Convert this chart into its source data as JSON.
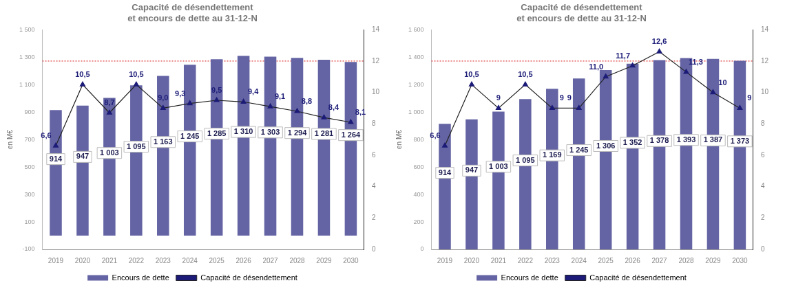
{
  "chart_data": [
    {
      "type": "bar",
      "title": "Capacité de désendettement\net encours de dette au 31-12-N",
      "ylabel": "en M€",
      "categories": [
        "2019",
        "2020",
        "2021",
        "2022",
        "2023",
        "2024",
        "2025",
        "2026",
        "2027",
        "2028",
        "2029",
        "2030"
      ],
      "series": [
        {
          "name": "Encours de dette",
          "color": "#6464a4",
          "values": [
            914,
            947,
            1003,
            1095,
            1163,
            1245,
            1285,
            1310,
            1303,
            1294,
            1281,
            1264
          ],
          "value_labels": [
            "914",
            "947",
            "1 003",
            "1 095",
            "1 163",
            "1 245",
            "1 285",
            "1 310",
            "1 303",
            "1 294",
            "1 281",
            "1 264"
          ]
        },
        {
          "name": "Capacité de désendettement",
          "type": "line",
          "axis": "y2",
          "color": "#1c1c78",
          "marker": "triangle",
          "values": [
            6.6,
            10.5,
            8.7,
            10.5,
            9.0,
            9.3,
            9.5,
            9.4,
            9.1,
            8.8,
            8.4,
            8.1
          ],
          "value_labels": [
            "6,6",
            "10,5",
            "8,7",
            "10,5",
            "9,0",
            "9,3",
            "9,5",
            "9,4",
            "9,1",
            "8,8",
            "8,4",
            "8,1"
          ]
        }
      ],
      "ylim": [
        -100,
        1500
      ],
      "yticks": [
        {
          "value": -100,
          "label": "-100"
        },
        {
          "value": 100,
          "label": "100"
        },
        {
          "value": 300,
          "label": "300"
        },
        {
          "value": 500,
          "label": "500"
        },
        {
          "value": 700,
          "label": "700"
        },
        {
          "value": 900,
          "label": "900"
        },
        {
          "value": 1100,
          "label": "1 100"
        },
        {
          "value": 1300,
          "label": "1 300"
        },
        {
          "value": 1500,
          "label": "1 500"
        }
      ],
      "y2lim": [
        0,
        14
      ],
      "y2ticks": [
        0,
        2,
        4,
        6,
        8,
        10,
        12,
        14
      ],
      "ref_lines": [
        {
          "axis": "y2",
          "value": 12,
          "color": "#e04040",
          "line_style": "dotted"
        }
      ],
      "legend": "bottom",
      "grid": false
    },
    {
      "type": "bar",
      "title": "Capacité de désendettement\net encours de dette au 31-12-N",
      "ylabel": "en M€",
      "categories": [
        "2019",
        "2020",
        "2021",
        "2022",
        "2023",
        "2024",
        "2025",
        "2026",
        "2027",
        "2028",
        "2029",
        "2030"
      ],
      "series": [
        {
          "name": "Encours de dette",
          "color": "#6464a4",
          "values": [
            914,
            947,
            1003,
            1095,
            1169,
            1245,
            1306,
            1352,
            1378,
            1393,
            1387,
            1373
          ],
          "value_labels": [
            "914",
            "947",
            "1 003",
            "1 095",
            "1 169",
            "1 245",
            "1 306",
            "1 352",
            "1 378",
            "1 393",
            "1 387",
            "1 373"
          ]
        },
        {
          "name": "Capacité de désendettement",
          "type": "line",
          "axis": "y2",
          "color": "#1c1c78",
          "marker": "triangle",
          "values": [
            6.6,
            10.5,
            9,
            10.5,
            9,
            9,
            11.0,
            11.7,
            12.6,
            11.3,
            10,
            9
          ],
          "value_labels": [
            "6,6",
            "10,5",
            "9",
            "10,5",
            "9",
            "9",
            "11,0",
            "11,7",
            "12,6",
            "11,3",
            "10",
            "9"
          ]
        }
      ],
      "ylim": [
        0,
        1600
      ],
      "yticks": [
        {
          "value": 0,
          "label": "0"
        },
        {
          "value": 200,
          "label": "200"
        },
        {
          "value": 400,
          "label": "400"
        },
        {
          "value": 600,
          "label": "600"
        },
        {
          "value": 800,
          "label": "800"
        },
        {
          "value": 1000,
          "label": "1 000"
        },
        {
          "value": 1200,
          "label": "1 200"
        },
        {
          "value": 1400,
          "label": "1 400"
        },
        {
          "value": 1600,
          "label": "1 600"
        }
      ],
      "y2lim": [
        0,
        14
      ],
      "y2ticks": [
        0,
        2,
        4,
        6,
        8,
        10,
        12,
        14
      ],
      "ref_lines": [
        {
          "axis": "y2",
          "value": 12,
          "color": "#e04040",
          "line_style": "dotted"
        }
      ],
      "legend": "bottom",
      "grid": false
    }
  ]
}
